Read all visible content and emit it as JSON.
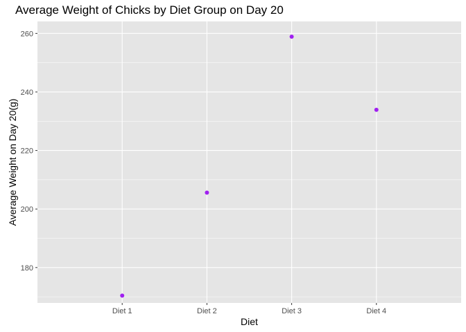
{
  "chart_data": {
    "type": "scatter",
    "title": "Average Weight of Chicks by Diet Group on Day 20",
    "xlabel": "Diet",
    "ylabel": "Average Weight on Day 20(g)",
    "categories": [
      "Diet 1",
      "Diet 2",
      "Diet 3",
      "Diet 4"
    ],
    "values": [
      170.4,
      205.6,
      258.9,
      233.9
    ],
    "yticks": [
      180,
      200,
      220,
      240,
      260
    ],
    "ytick_labels": [
      "180",
      "200",
      "220",
      "240",
      "260"
    ],
    "ylim": [
      167.9,
      264.1
    ],
    "grid": true,
    "legend": "none",
    "colors": {
      "point": "#a020f0",
      "panel_bg": "#e5e5e5",
      "grid": "#ffffff",
      "tick": "#333333"
    }
  }
}
